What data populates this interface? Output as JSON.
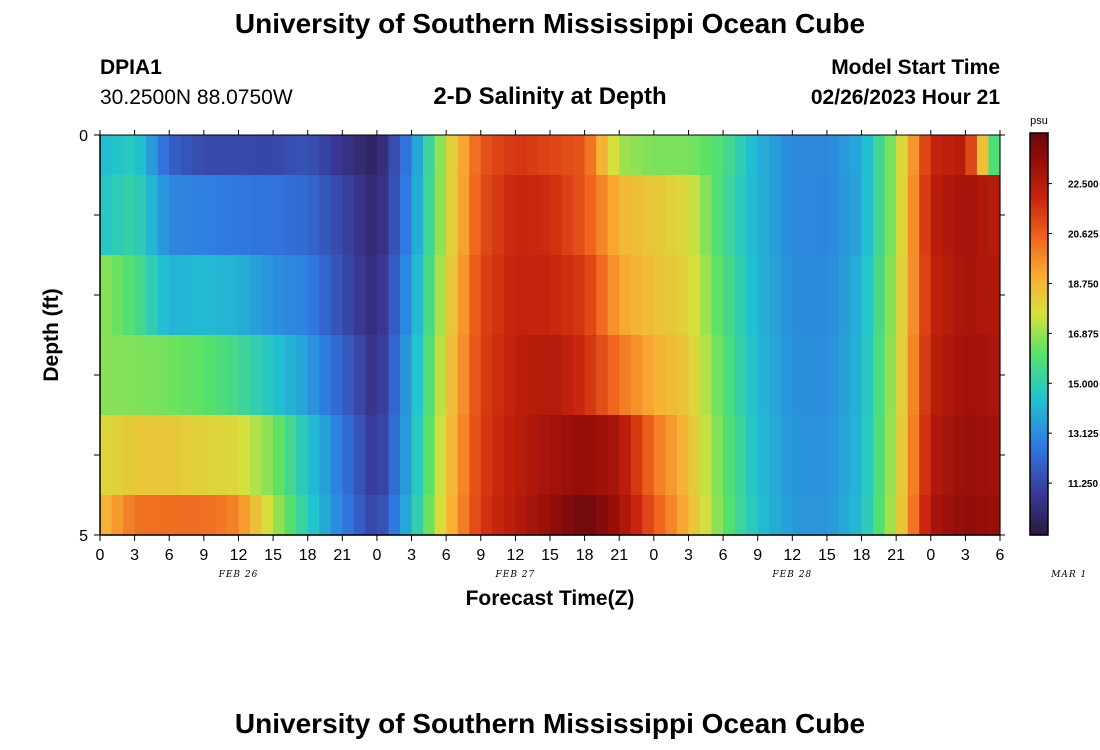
{
  "header": {
    "title": "University of Southern Mississippi Ocean Cube",
    "station_id": "DPIA1",
    "station_coords": "30.2500N  88.0750W",
    "subtitle": "2-D Salinity at Depth",
    "model_start_label": "Model Start Time",
    "model_start_value": "02/26/2023 Hour 21"
  },
  "footer": {
    "title": "University of Southern Mississippi Ocean Cube"
  },
  "chart_data": {
    "type": "heatmap",
    "title": "2-D Salinity at Depth",
    "xlabel": "Forecast Time(Z)",
    "ylabel": "Depth (ft)",
    "x_tick_labels": [
      "0",
      "3",
      "6",
      "9",
      "12",
      "15",
      "18",
      "21",
      "0",
      "3",
      "6",
      "9",
      "12",
      "15",
      "18",
      "21",
      "0",
      "3",
      "6",
      "9",
      "12",
      "15",
      "18",
      "21",
      "0",
      "3",
      "6"
    ],
    "date_labels": [
      "FEB 26",
      "FEB 27",
      "FEB 28",
      "MAR 1"
    ],
    "y_tick_labels": [
      "0",
      "5"
    ],
    "ylim": [
      0,
      5
    ],
    "y_inverted": true,
    "hours": 78,
    "colorbar": {
      "unit": "psu",
      "min": 9.3,
      "max": 24.4,
      "tick_labels": [
        "22.500",
        "20.625",
        "18.750",
        "16.875",
        "15.000",
        "13.125",
        "11.250"
      ],
      "tick_values": [
        22.5,
        20.625,
        18.75,
        16.875,
        15.0,
        13.125,
        11.25
      ]
    },
    "x_knots": [
      0,
      3,
      6,
      9,
      12,
      15,
      18,
      21,
      24,
      27,
      30,
      33,
      36,
      39,
      42,
      45,
      48,
      51,
      54,
      57,
      60,
      63,
      66,
      69,
      72,
      75,
      78
    ],
    "rows": [
      {
        "depth_range": [
          0.0,
          0.5
        ],
        "knots": [
          14.2,
          14.8,
          12.0,
          11.3,
          11.3,
          11.2,
          11.6,
          10.6,
          9.8,
          13.0,
          17.5,
          20.8,
          21.6,
          21.2,
          20.8,
          17.0,
          16.5,
          16.5,
          15.8,
          14.0,
          13.0,
          13.0,
          13.8,
          17.0,
          22.0,
          22.5,
          14.5
        ]
      },
      {
        "depth_range": [
          0.5,
          1.5
        ],
        "knots": [
          14.5,
          15.2,
          13.0,
          12.8,
          12.6,
          12.5,
          12.2,
          11.2,
          10.0,
          13.2,
          17.5,
          21.0,
          22.0,
          21.8,
          20.8,
          18.8,
          18.3,
          17.8,
          15.5,
          14.0,
          13.0,
          12.9,
          13.8,
          17.0,
          22.3,
          23.0,
          22.4
        ]
      },
      {
        "depth_range": [
          1.5,
          2.5
        ],
        "knots": [
          16.8,
          15.8,
          14.0,
          14.2,
          14.0,
          13.2,
          12.8,
          11.4,
          10.2,
          13.5,
          17.8,
          21.2,
          22.1,
          22.0,
          21.5,
          19.2,
          18.5,
          18.0,
          15.8,
          14.1,
          13.1,
          13.0,
          14.0,
          17.2,
          22.1,
          22.9,
          22.6
        ]
      },
      {
        "depth_range": [
          2.5,
          3.5
        ],
        "knots": [
          16.7,
          16.6,
          16.4,
          16.1,
          15.5,
          14.5,
          13.5,
          12.0,
          10.4,
          13.8,
          18.0,
          21.3,
          22.3,
          22.6,
          21.8,
          20.2,
          19.0,
          18.3,
          16.0,
          14.2,
          13.2,
          13.1,
          14.1,
          17.3,
          22.3,
          23.1,
          22.8
        ]
      },
      {
        "depth_range": [
          3.5,
          4.5
        ],
        "knots": [
          17.8,
          18.3,
          18.3,
          18.0,
          17.8,
          16.5,
          14.5,
          12.6,
          10.6,
          14.0,
          18.2,
          21.4,
          22.4,
          23.0,
          23.4,
          22.8,
          20.2,
          18.6,
          16.2,
          14.3,
          13.3,
          13.2,
          14.2,
          17.4,
          22.5,
          23.3,
          23.0
        ]
      },
      {
        "depth_range": [
          4.5,
          5.0
        ],
        "knots": [
          18.6,
          20.2,
          20.3,
          20.3,
          19.8,
          17.2,
          14.8,
          12.8,
          11.0,
          14.3,
          18.4,
          21.5,
          22.5,
          23.3,
          24.3,
          23.1,
          20.8,
          18.8,
          16.3,
          14.4,
          13.4,
          13.3,
          14.3,
          17.5,
          22.8,
          23.5,
          23.2
        ]
      }
    ]
  }
}
